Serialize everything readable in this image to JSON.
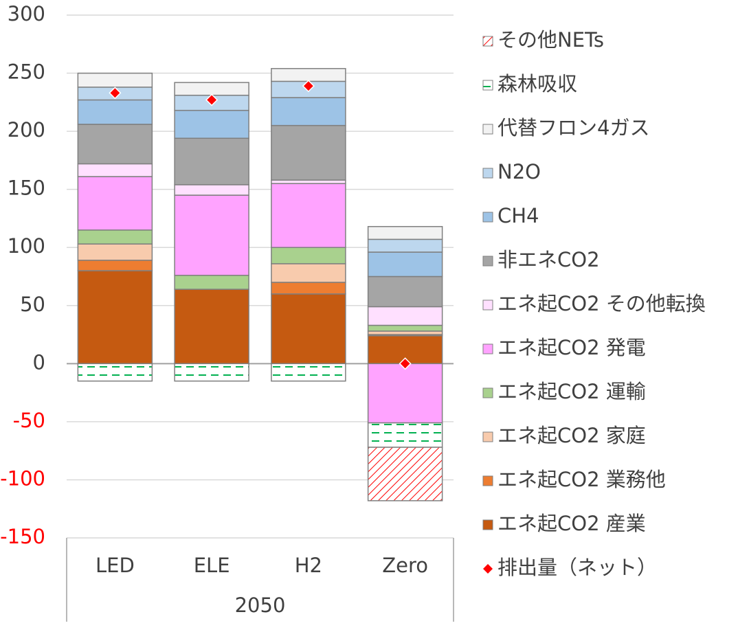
{
  "chart_data": {
    "type": "stacked-bar",
    "categories": [
      "LED",
      "ELE",
      "H2",
      "Zero"
    ],
    "group_label": "2050",
    "ylim": [
      -150,
      300
    ],
    "yticks": [
      -150,
      -100,
      -50,
      0,
      50,
      100,
      150,
      200,
      250,
      300
    ],
    "negative_tick_color": "#ff0000",
    "grid": true,
    "legend": "right",
    "series": [
      {
        "name": "エネ起CO2 産業",
        "color": "#c55a11",
        "values": [
          80,
          64,
          60,
          24
        ]
      },
      {
        "name": "エネ起CO2 業務他",
        "color": "#ed7d31",
        "values": [
          9,
          0,
          10,
          1
        ]
      },
      {
        "name": "エネ起CO2 家庭",
        "color": "#f8cbad",
        "values": [
          14,
          0,
          16,
          3
        ]
      },
      {
        "name": "エネ起CO2 運輸",
        "color": "#a9d18e",
        "values": [
          12,
          12,
          14,
          5
        ]
      },
      {
        "name": "エネ起CO2 発電",
        "color": "#ffa3ff",
        "values": [
          46,
          69,
          55,
          -51
        ]
      },
      {
        "name": "エネ起CO2 その他転換",
        "color": "#ffe0ff",
        "values": [
          11,
          9,
          3,
          16
        ]
      },
      {
        "name": "非エネCO2",
        "color": "#a5a5a5",
        "values": [
          34,
          40,
          47,
          26
        ]
      },
      {
        "name": "CH4",
        "color": "#9dc3e6",
        "values": [
          21,
          24,
          24,
          21
        ]
      },
      {
        "name": "N2O",
        "color": "#bdd7ee",
        "values": [
          11,
          13,
          14,
          11
        ]
      },
      {
        "name": "代替フロン4ガス",
        "color": "#f2f2f2",
        "values": [
          12,
          11,
          11,
          11
        ]
      },
      {
        "name": "森林吸収",
        "color": "#00b050",
        "pattern": "dashed",
        "values": [
          -15,
          -15,
          -15,
          -21
        ]
      },
      {
        "name": "その他NETs",
        "color": "#ff0000",
        "pattern": "hatched",
        "values": [
          0,
          0,
          0,
          -46
        ]
      }
    ],
    "net": {
      "name": "排出量（ネット）",
      "color": "#ff0000",
      "values": [
        233,
        227,
        239,
        0
      ]
    }
  }
}
